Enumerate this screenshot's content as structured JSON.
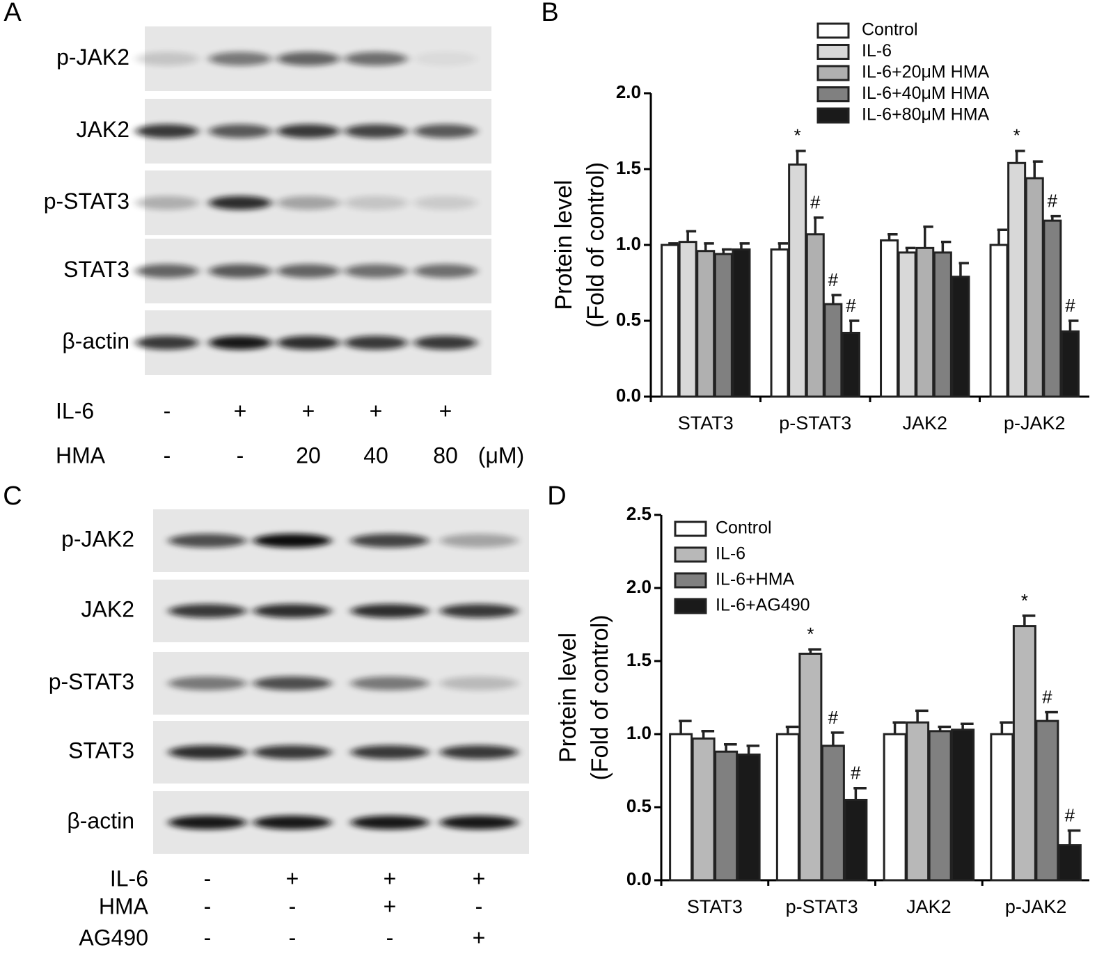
{
  "chart_data": [
    {
      "type": "bar",
      "panel": "B",
      "ylabel": [
        "Protein level",
        "(Fold of control)"
      ],
      "categories": [
        "STAT3",
        "p-STAT3",
        "JAK2",
        "p-JAK2"
      ],
      "series": [
        {
          "name": "Control",
          "color": "#ffffff",
          "values": [
            1.0,
            0.97,
            1.03,
            1.0
          ],
          "errors": [
            0.01,
            0.04,
            0.04,
            0.1
          ],
          "annotations": [
            null,
            null,
            null,
            null
          ]
        },
        {
          "name": "IL-6",
          "color": "#d8d8d8",
          "values": [
            1.02,
            1.53,
            0.95,
            1.54
          ],
          "errors": [
            0.07,
            0.09,
            0.03,
            0.08
          ],
          "annotations": [
            null,
            "*",
            null,
            "*"
          ]
        },
        {
          "name": "IL-6+20μM HMA",
          "color": "#b0b0b0",
          "values": [
            0.96,
            1.07,
            0.98,
            1.44
          ],
          "errors": [
            0.05,
            0.11,
            0.14,
            0.11
          ],
          "annotations": [
            null,
            "#",
            null,
            null
          ]
        },
        {
          "name": "IL-6+40μM HMA",
          "color": "#808080",
          "values": [
            0.94,
            0.61,
            0.95,
            1.16
          ],
          "errors": [
            0.03,
            0.06,
            0.07,
            0.03
          ],
          "annotations": [
            null,
            "#",
            null,
            "#"
          ]
        },
        {
          "name": "IL-6+80μM HMA",
          "color": "#1a1a1a",
          "values": [
            0.97,
            0.42,
            0.79,
            0.43
          ],
          "errors": [
            0.04,
            0.08,
            0.09,
            0.07
          ],
          "annotations": [
            null,
            "#",
            null,
            "#"
          ]
        }
      ],
      "ylim": [
        0,
        2.0
      ],
      "yticks": [
        {
          "value": 0,
          "label": "0.0"
        },
        {
          "value": 0.5,
          "label": "0.5"
        },
        {
          "value": 1,
          "label": "1.0"
        },
        {
          "value": 1.5,
          "label": "1.5"
        },
        {
          "value": 2,
          "label": "2.0"
        }
      ],
      "legend": "top-right"
    },
    {
      "type": "bar",
      "panel": "D",
      "ylabel": [
        "Protein level",
        "(Fold of control)"
      ],
      "categories": [
        "STAT3",
        "p-STAT3",
        "JAK2",
        "p-JAK2"
      ],
      "series": [
        {
          "name": "Control",
          "color": "#ffffff",
          "values": [
            1.0,
            1.0,
            1.0,
            1.0
          ],
          "errors": [
            0.09,
            0.05,
            0.08,
            0.08
          ],
          "annotations": [
            null,
            null,
            null,
            null
          ]
        },
        {
          "name": "IL-6",
          "color": "#b8b8b8",
          "values": [
            0.97,
            1.55,
            1.08,
            1.74
          ],
          "errors": [
            0.05,
            0.03,
            0.08,
            0.07
          ],
          "annotations": [
            null,
            "*",
            null,
            "*"
          ]
        },
        {
          "name": "IL-6+HMA",
          "color": "#808080",
          "values": [
            0.88,
            0.92,
            1.02,
            1.09
          ],
          "errors": [
            0.05,
            0.09,
            0.03,
            0.06
          ],
          "annotations": [
            null,
            "#",
            null,
            "#"
          ]
        },
        {
          "name": "IL-6+AG490",
          "color": "#1a1a1a",
          "values": [
            0.86,
            0.55,
            1.03,
            0.24
          ],
          "errors": [
            0.06,
            0.08,
            0.04,
            0.1
          ],
          "annotations": [
            null,
            "#",
            null,
            "#"
          ]
        }
      ],
      "ylim": [
        0,
        2.5
      ],
      "yticks": [
        {
          "value": 0,
          "label": "0.0"
        },
        {
          "value": 0.5,
          "label": "0.5"
        },
        {
          "value": 1,
          "label": "1.0"
        },
        {
          "value": 1.5,
          "label": "1.5"
        },
        {
          "value": 2,
          "label": "2.0"
        },
        {
          "value": 2.5,
          "label": "2.5"
        }
      ],
      "legend": "top-left"
    }
  ],
  "blots": [
    {
      "panel": "A",
      "rows": [
        "p-JAK2",
        "JAK2",
        "p-STAT3",
        "STAT3",
        "β-actin"
      ],
      "treatments": [
        {
          "label": "IL-6",
          "values": [
            "-",
            "+",
            "+",
            "+",
            "+"
          ]
        },
        {
          "label": "HMA",
          "values": [
            "-",
            "-",
            "20",
            "40",
            "80"
          ]
        }
      ],
      "unit": "(μM)"
    },
    {
      "panel": "C",
      "rows": [
        "p-JAK2",
        "JAK2",
        "p-STAT3",
        "STAT3",
        "β-actin"
      ],
      "treatments": [
        {
          "label": "IL-6",
          "values": [
            "-",
            "+",
            "+",
            "+"
          ]
        },
        {
          "label": "HMA",
          "values": [
            "-",
            "-",
            "+",
            "-"
          ]
        },
        {
          "label": "AG490",
          "values": [
            "-",
            "-",
            "-",
            "+"
          ]
        }
      ]
    }
  ]
}
